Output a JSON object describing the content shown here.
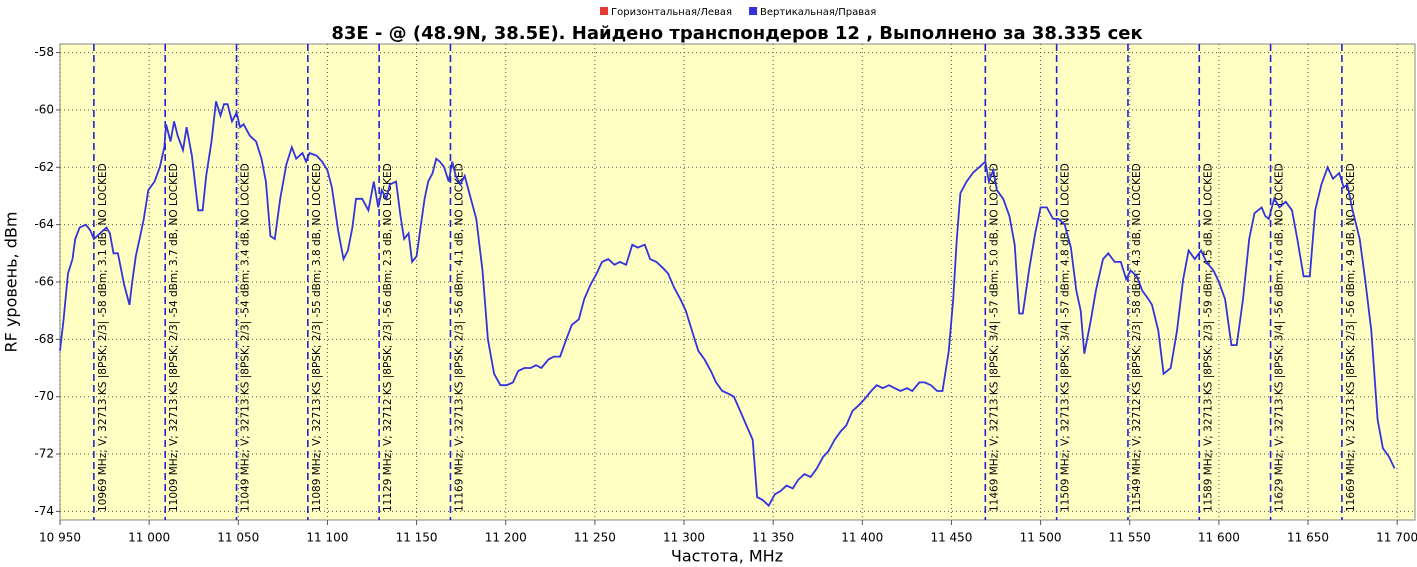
{
  "chart_data": {
    "type": "line",
    "title": "83E -  @  (48.9N, 38.5E). Найдено транспондеров 12 , Выполнено за 38.335 сек",
    "x_label": "Частота, MHz",
    "y_label": "RF уровень, dBm",
    "xlim": [
      10950,
      11710
    ],
    "ylim": [
      -74.3,
      -57.7
    ],
    "xticks": [
      {
        "value": 10950,
        "label": "10 950"
      },
      {
        "value": 11000,
        "label": "11 000"
      },
      {
        "value": 11050,
        "label": "11 050"
      },
      {
        "value": 11100,
        "label": "11 100"
      },
      {
        "value": 11150,
        "label": "11 150"
      },
      {
        "value": 11200,
        "label": "11 200"
      },
      {
        "value": 11250,
        "label": "11 250"
      },
      {
        "value": 11300,
        "label": "11 300"
      },
      {
        "value": 11350,
        "label": "11 350"
      },
      {
        "value": 11400,
        "label": "11 400"
      },
      {
        "value": 11450,
        "label": "11 450"
      },
      {
        "value": 11500,
        "label": "11 500"
      },
      {
        "value": 11550,
        "label": "11 550"
      },
      {
        "value": 11600,
        "label": "11 600"
      },
      {
        "value": 11650,
        "label": "11 650"
      },
      {
        "value": 11700,
        "label": "11 700"
      }
    ],
    "yticks": [
      -58,
      -60,
      -62,
      -64,
      -66,
      -68,
      -70,
      -72,
      -74
    ],
    "grid": true,
    "series": [
      {
        "name": "Горизонтальная/Левая",
        "color": "#e53935",
        "x": [],
        "values": []
      },
      {
        "name": "Вертикальная/Правая",
        "color": "#3333dd",
        "x": [
          10950,
          10952,
          10954.5,
          10957,
          10958.5,
          10961,
          10964.5,
          10967,
          10969,
          10972.5,
          10976,
          10978,
          10980,
          10982.5,
          10986,
          10989,
          10990.5,
          10992.5,
          10995,
          10997,
          10999.5,
          11003,
          11006,
          11008.5,
          11009.5,
          11012,
          11014,
          11016,
          11019,
          11021,
          11024,
          11027.5,
          11030,
          11032,
          11035,
          11037.5,
          11040,
          11042,
          11044,
          11046.5,
          11049,
          11051,
          11053,
          11056.5,
          11060,
          11063,
          11065.5,
          11068,
          11070.5,
          11073.5,
          11077,
          11080,
          11082.5,
          11086,
          11088,
          11090,
          11094,
          11097,
          11100,
          11102.5,
          11106,
          11109,
          11111.5,
          11114,
          11116,
          11119.5,
          11123,
          11126,
          11128.5,
          11130.5,
          11133,
          11135,
          11138.5,
          11141,
          11143,
          11145.5,
          11147.5,
          11150,
          11152,
          11154.5,
          11156.5,
          11159,
          11161,
          11163,
          11165.5,
          11168,
          11170,
          11172,
          11174.5,
          11177,
          11180,
          11183.5,
          11187,
          11190,
          11193.5,
          11197,
          11200.5,
          11204,
          11207,
          11210.5,
          11214,
          11217,
          11220,
          11224,
          11227,
          11230.5,
          11234,
          11237,
          11241,
          11244,
          11247.5,
          11251,
          11254,
          11257.5,
          11261,
          11264,
          11267.5,
          11271,
          11274,
          11278,
          11281,
          11284.5,
          11288,
          11291,
          11294.5,
          11298,
          11301,
          11305,
          11308,
          11311.5,
          11315,
          11318,
          11321.5,
          11325,
          11328,
          11331.5,
          11335,
          11338.5,
          11341,
          11344,
          11347.5,
          11351,
          11354,
          11357.5,
          11361,
          11364,
          11367.5,
          11371,
          11374.5,
          11378,
          11381,
          11384.5,
          11388,
          11391,
          11394.5,
          11398,
          11401,
          11405,
          11408,
          11411.5,
          11415,
          11418,
          11421.5,
          11425,
          11428,
          11432,
          11435,
          11438.5,
          11442,
          11445,
          11448.5,
          11451,
          11453,
          11455,
          11458.5,
          11462,
          11465.5,
          11469,
          11471,
          11473.5,
          11475.5,
          11479,
          11482.5,
          11485.5,
          11488,
          11490,
          11493.5,
          11497,
          11500,
          11503.5,
          11507,
          11510,
          11513.5,
          11517,
          11520,
          11522.5,
          11524.5,
          11528,
          11531,
          11535,
          11538,
          11541.5,
          11545,
          11548,
          11550.5,
          11554,
          11557,
          11560.5,
          11562.5,
          11566,
          11569,
          11573,
          11576.5,
          11580,
          11583,
          11586.5,
          11590,
          11593,
          11597,
          11600,
          11603.5,
          11607,
          11610,
          11613.5,
          11617,
          11620,
          11624,
          11626,
          11628,
          11631,
          11634,
          11637.5,
          11641,
          11644,
          11647.5,
          11651,
          11654,
          11657.5,
          11661,
          11664,
          11667.5,
          11670,
          11672,
          11675,
          11679,
          11682,
          11685.5,
          11689,
          11692,
          11695.5,
          11698.5
        ],
        "values": [
          -68.4,
          -67.3,
          -65.7,
          -65.2,
          -64.5,
          -64.1,
          -64.0,
          -64.2,
          -64.5,
          -64.3,
          -64.1,
          -64.3,
          -65.0,
          -65.0,
          -66.1,
          -66.8,
          -66.0,
          -65.1,
          -64.4,
          -63.8,
          -62.8,
          -62.5,
          -62.0,
          -61.3,
          -60.5,
          -61.1,
          -60.4,
          -60.9,
          -61.4,
          -60.6,
          -61.6,
          -63.5,
          -63.5,
          -62.3,
          -61.1,
          -59.7,
          -60.2,
          -59.8,
          -59.8,
          -60.4,
          -60.1,
          -60.6,
          -60.5,
          -60.9,
          -61.1,
          -61.7,
          -62.5,
          -64.4,
          -64.5,
          -63.1,
          -61.9,
          -61.3,
          -61.7,
          -61.5,
          -61.8,
          -61.5,
          -61.6,
          -61.8,
          -62.1,
          -62.7,
          -64.2,
          -65.2,
          -64.9,
          -64.1,
          -63.1,
          -63.1,
          -63.5,
          -62.5,
          -63.4,
          -62.8,
          -63.1,
          -62.6,
          -62.5,
          -63.7,
          -64.5,
          -64.3,
          -65.3,
          -65.1,
          -64.2,
          -63.1,
          -62.5,
          -62.2,
          -61.7,
          -61.8,
          -62.0,
          -62.5,
          -61.8,
          -62.3,
          -62.6,
          -62.3,
          -63.0,
          -63.8,
          -65.6,
          -68.0,
          -69.2,
          -69.6,
          -69.6,
          -69.5,
          -69.1,
          -69.0,
          -69.0,
          -68.9,
          -69.0,
          -68.7,
          -68.6,
          -68.6,
          -68.0,
          -67.5,
          -67.3,
          -66.6,
          -66.1,
          -65.7,
          -65.3,
          -65.2,
          -65.4,
          -65.3,
          -65.4,
          -64.7,
          -64.8,
          -64.7,
          -65.2,
          -65.3,
          -65.5,
          -65.7,
          -66.2,
          -66.6,
          -67.0,
          -67.8,
          -68.4,
          -68.7,
          -69.1,
          -69.5,
          -69.8,
          -69.9,
          -70.0,
          -70.5,
          -71.0,
          -71.5,
          -73.5,
          -73.6,
          -73.8,
          -73.4,
          -73.3,
          -73.1,
          -73.2,
          -72.9,
          -72.7,
          -72.8,
          -72.5,
          -72.1,
          -71.9,
          -71.5,
          -71.2,
          -71.0,
          -70.5,
          -70.3,
          -70.1,
          -69.8,
          -69.6,
          -69.7,
          -69.6,
          -69.7,
          -69.8,
          -69.7,
          -69.8,
          -69.5,
          -69.5,
          -69.6,
          -69.8,
          -69.8,
          -68.4,
          -66.6,
          -64.5,
          -62.9,
          -62.5,
          -62.2,
          -62.0,
          -61.8,
          -62.5,
          -62.1,
          -62.8,
          -63.1,
          -63.7,
          -64.7,
          -67.1,
          -67.1,
          -65.6,
          -64.3,
          -63.4,
          -63.4,
          -63.8,
          -63.8,
          -64.0,
          -64.8,
          -66.3,
          -67.0,
          -68.5,
          -67.4,
          -66.3,
          -65.2,
          -65.0,
          -65.3,
          -65.3,
          -65.9,
          -65.6,
          -65.8,
          -66.3,
          -66.6,
          -66.8,
          -67.7,
          -69.2,
          -69.0,
          -67.7,
          -65.9,
          -64.9,
          -65.2,
          -64.9,
          -65.3,
          -65.6,
          -66.0,
          -66.6,
          -68.2,
          -68.2,
          -66.6,
          -64.5,
          -63.6,
          -63.4,
          -63.7,
          -63.8,
          -63.1,
          -63.4,
          -63.2,
          -63.5,
          -64.5,
          -65.8,
          -65.8,
          -63.5,
          -62.6,
          -62.0,
          -62.4,
          -62.2,
          -62.7,
          -62.6,
          -63.5,
          -64.5,
          -65.9,
          -67.7,
          -70.8,
          -71.8,
          -72.1,
          -72.5
        ]
      }
    ],
    "transponders": [
      {
        "freq": 10969,
        "label": "10969 MHz; V; 32713 KS |8PSK; 2/3| -58 dBm; 3.1 dB, NO LOCKED"
      },
      {
        "freq": 11009,
        "label": "11009 MHz; V; 32713 KS |8PSK; 2/3| -54 dBm; 3.7 dB, NO LOCKED"
      },
      {
        "freq": 11049,
        "label": "11049 MHz; V; 32713 KS |8PSK; 2/3| -54 dBm; 3.4 dB, NO LOCKED"
      },
      {
        "freq": 11089,
        "label": "11089 MHz; V; 32713 KS |8PSK; 2/3| -55 dBm; 3.8 dB, NO LOCKED"
      },
      {
        "freq": 11129,
        "label": "11129 MHz; V; 32712 KS |8PSK; 2/3| -56 dBm; 2.3 dB, NO LOCKED"
      },
      {
        "freq": 11169,
        "label": "11169 MHz; V; 32713 KS |8PSK; 2/3| -56 dBm; 4.1 dB, NO LOCKED"
      },
      {
        "freq": 11469,
        "label": "11469 MHz; V; 32713 KS |8PSK; 3/4| -57 dBm; 5.0 dB, NO LOCKED"
      },
      {
        "freq": 11509,
        "label": "11509 MHz; V; 32713 KS |8PSK; 3/4| -57 dBm; 4.8 dB, NO LOCKED"
      },
      {
        "freq": 11549,
        "label": "11549 MHz; V; 32712 KS |8PSK; 2/3| -58 dBm; 4.3 dB, NO LOCKED"
      },
      {
        "freq": 11589,
        "label": "11589 MHz; V; 32713 KS |8PSK; 2/3| -59 dBm; 4.5 dB, NO LOCKED"
      },
      {
        "freq": 11629,
        "label": "11629 MHz; V; 32713 KS |8PSK; 3/4| -56 dBm; 4.6 dB, NO LOCKED"
      },
      {
        "freq": 11669,
        "label": "11669 MHz; V; 32713 KS |8PSK; 2/3| -56 dBm; 4.9 dB, NO LOCKED"
      }
    ]
  }
}
